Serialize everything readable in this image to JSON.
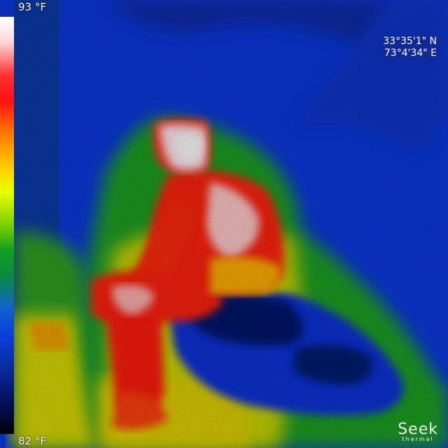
{
  "scale": {
    "max_label": "93 °F",
    "min_label": "82 °F"
  },
  "gps": {
    "latitude": "33°35'1\" N",
    "longitude": "73°4'34\" E"
  },
  "logo": {
    "word": "Seek",
    "sub": "thermal"
  },
  "palette": {
    "hot": "#ffffff",
    "warm": "#ff2010",
    "mid": "#ffe000",
    "cool": "#20b020",
    "cold": "#0a30e0",
    "coldest": "#061050"
  }
}
